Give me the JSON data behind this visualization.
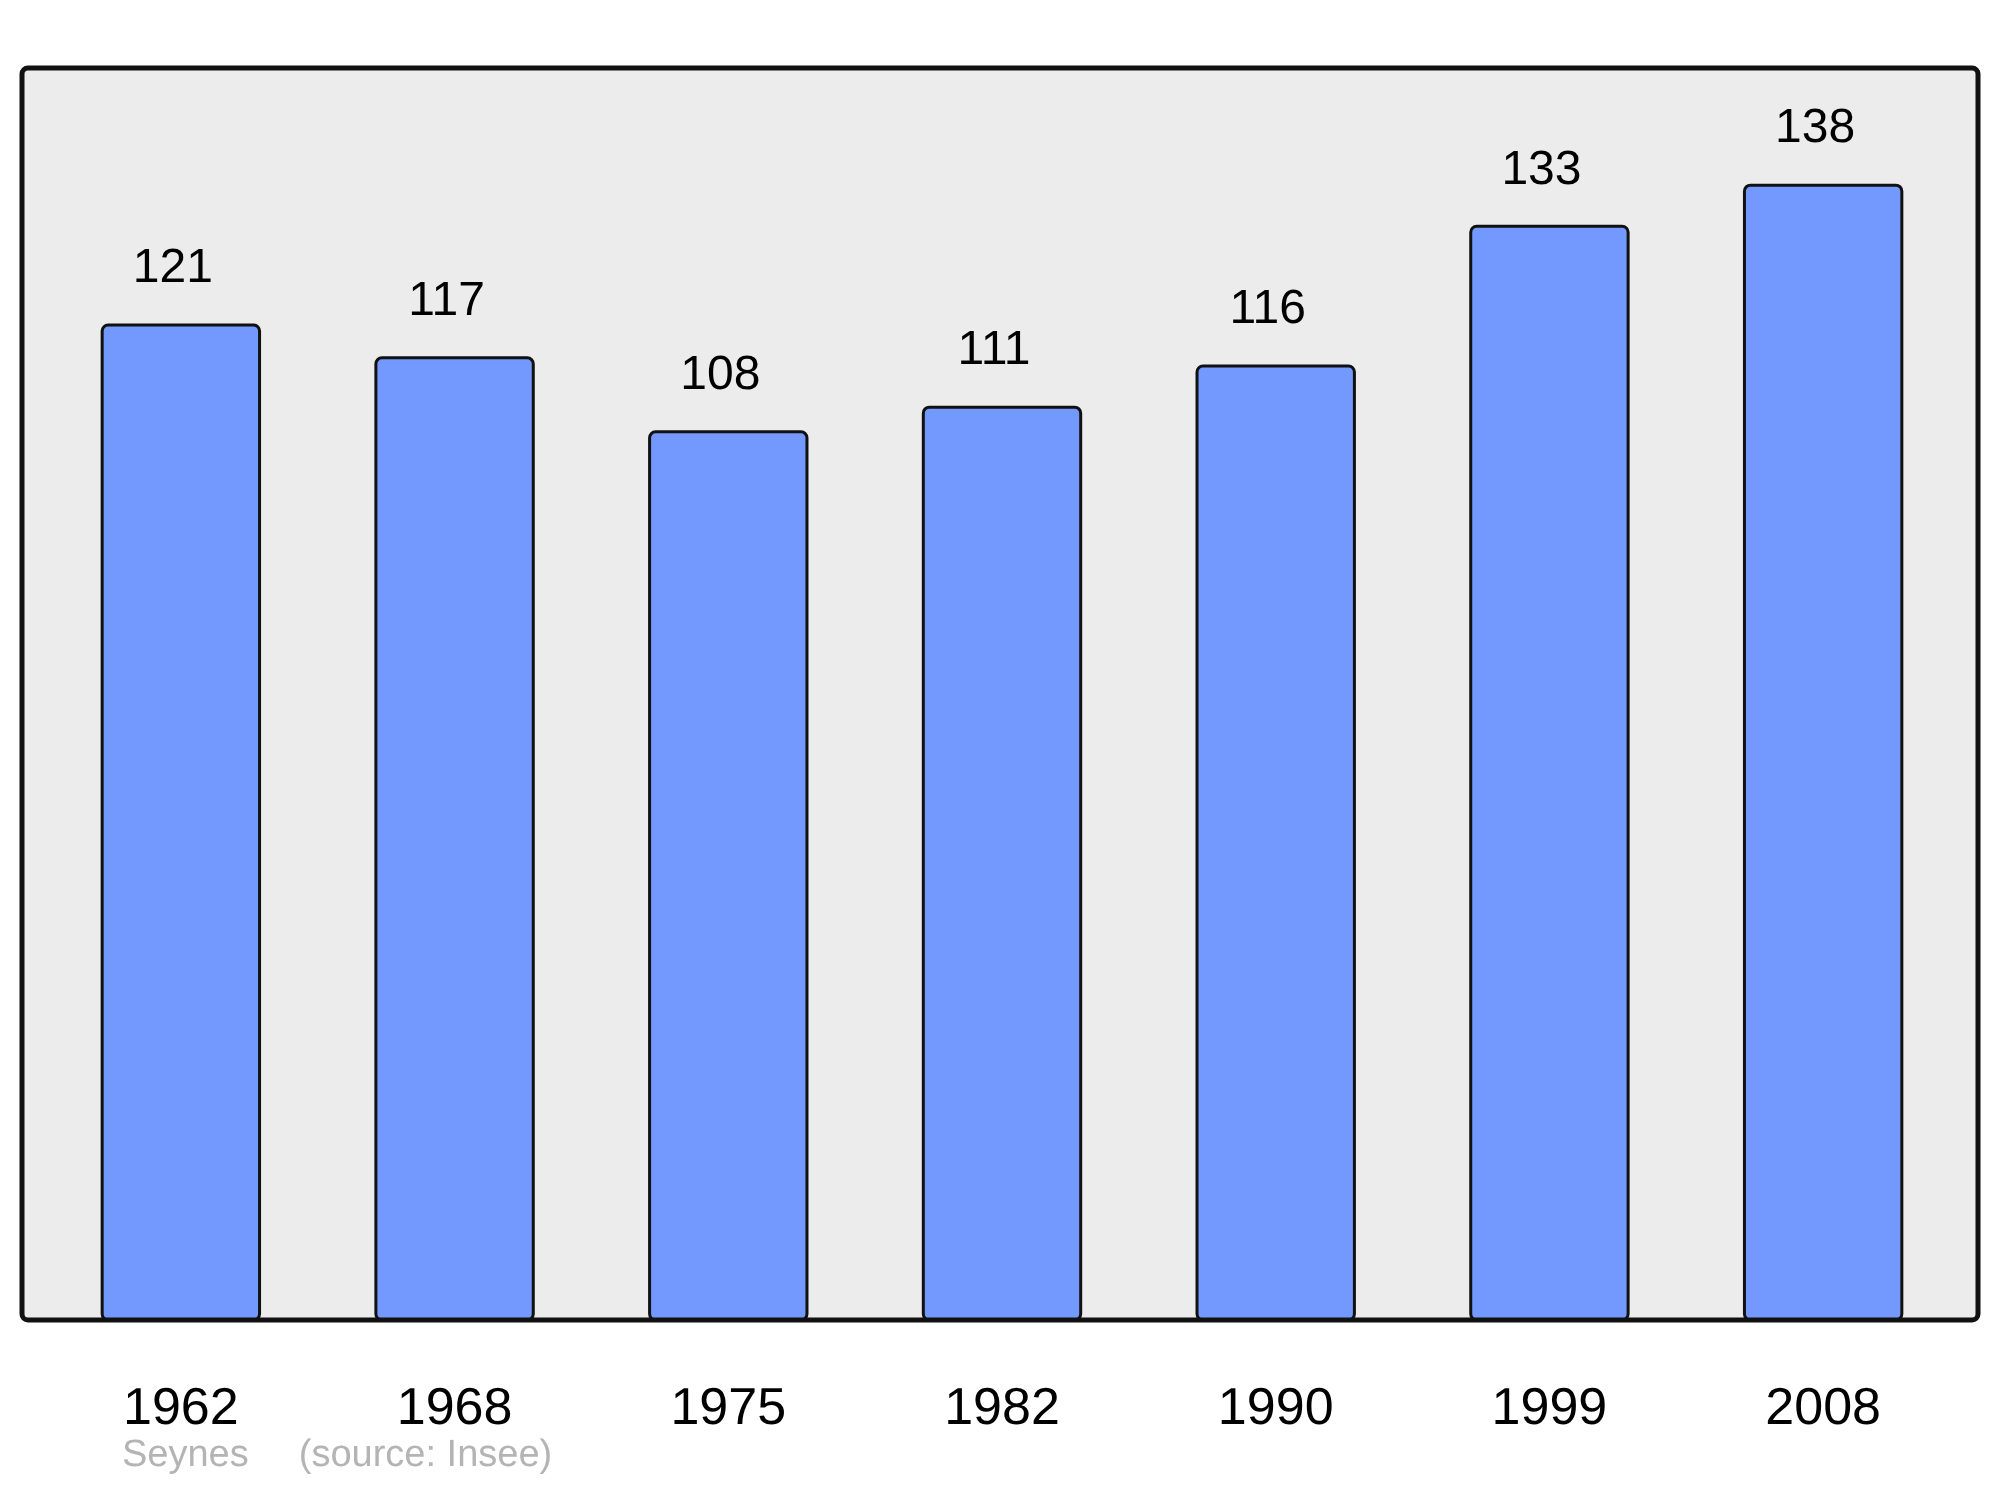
{
  "chart_data": {
    "type": "bar",
    "categories": [
      "1962",
      "1968",
      "1975",
      "1982",
      "1990",
      "1999",
      "2008"
    ],
    "values": [
      121,
      117,
      108,
      111,
      116,
      133,
      138
    ],
    "color": "#7399ff",
    "ylim": [
      0,
      152
    ],
    "data_labels": true,
    "tick_labels": "x",
    "annotations": [
      "Seynes",
      "(source: Insee)"
    ]
  }
}
